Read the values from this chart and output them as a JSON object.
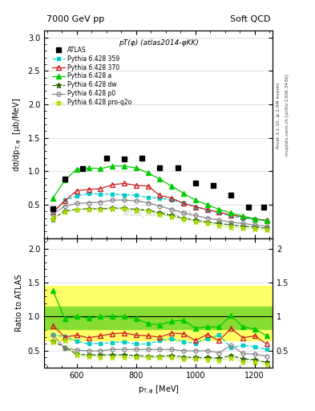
{
  "title_top": "7000 GeV pp",
  "title_right": "Soft QCD",
  "plot_title": "pT(φ) (atlas2014-φKK)",
  "watermark": "ATLAS_2014_I1282441",
  "right_label_top": "Rivet 3.1.10, ≥ 2.9M events",
  "right_label_bottom": "mcplots.cern.ch [arXiv:1306.3436]",
  "ylabel_main": "dσ/dpₜ,φ  [μb/MeV]",
  "ylabel_ratio": "Ratio to ATLAS",
  "xlabel": "pₜ,φ [MeV]",
  "xlim": [
    490,
    1260
  ],
  "ylim_main": [
    0.0,
    3.1
  ],
  "ylim_ratio": [
    0.25,
    2.15
  ],
  "yticks_main": [
    0.5,
    1.0,
    1.5,
    2.0,
    2.5,
    3.0
  ],
  "yticks_ratio": [
    0.5,
    1.0,
    1.5,
    2.0
  ],
  "xticks": [
    600,
    800,
    1000,
    1200
  ],
  "atlas_x": [
    520,
    560,
    620,
    700,
    760,
    820,
    880,
    940,
    1000,
    1060,
    1120,
    1180,
    1230
  ],
  "atlas_y": [
    0.44,
    0.89,
    1.04,
    1.2,
    1.19,
    1.2,
    1.05,
    1.05,
    0.82,
    0.79,
    0.64,
    0.47,
    0.47
  ],
  "series": [
    {
      "label": "Pythia 6.428 359",
      "color": "#00cccc",
      "linestyle": "--",
      "marker": "s",
      "markersize": 3.5,
      "filled": true,
      "x": [
        520,
        560,
        600,
        640,
        680,
        720,
        760,
        800,
        840,
        880,
        920,
        960,
        1000,
        1040,
        1080,
        1120,
        1160,
        1200,
        1240
      ],
      "y": [
        0.38,
        0.57,
        0.63,
        0.67,
        0.66,
        0.66,
        0.65,
        0.64,
        0.61,
        0.6,
        0.57,
        0.53,
        0.47,
        0.42,
        0.38,
        0.33,
        0.3,
        0.28,
        0.26
      ],
      "ratio": [
        0.73,
        0.71,
        0.64,
        0.6,
        0.61,
        0.62,
        0.63,
        0.6,
        0.6,
        0.65,
        0.68,
        0.63,
        0.61,
        0.68,
        0.73,
        0.55,
        0.58,
        0.56,
        0.52
      ]
    },
    {
      "label": "Pythia 6.428 370",
      "color": "#cc2222",
      "linestyle": "-",
      "marker": "^",
      "markersize": 4.5,
      "filled": false,
      "x": [
        520,
        560,
        600,
        640,
        680,
        720,
        760,
        800,
        840,
        880,
        920,
        960,
        1000,
        1040,
        1080,
        1120,
        1160,
        1200,
        1240
      ],
      "y": [
        0.39,
        0.56,
        0.71,
        0.73,
        0.74,
        0.8,
        0.82,
        0.79,
        0.78,
        0.64,
        0.6,
        0.52,
        0.47,
        0.43,
        0.39,
        0.35,
        0.32,
        0.29,
        0.27
      ],
      "ratio": [
        0.87,
        0.7,
        0.73,
        0.69,
        0.72,
        0.75,
        0.76,
        0.73,
        0.72,
        0.7,
        0.76,
        0.75,
        0.65,
        0.74,
        0.65,
        0.83,
        0.69,
        0.72,
        0.6
      ]
    },
    {
      "label": "Pythia 6.428 a",
      "color": "#00cc00",
      "linestyle": "-",
      "marker": "^",
      "markersize": 4.5,
      "filled": true,
      "x": [
        520,
        560,
        600,
        640,
        680,
        720,
        760,
        800,
        840,
        880,
        920,
        960,
        1000,
        1040,
        1080,
        1120,
        1160,
        1200,
        1240
      ],
      "y": [
        0.6,
        0.87,
        1.03,
        1.05,
        1.04,
        1.08,
        1.08,
        1.05,
        0.98,
        0.88,
        0.78,
        0.67,
        0.57,
        0.5,
        0.43,
        0.38,
        0.33,
        0.29,
        0.26
      ],
      "ratio": [
        1.38,
        0.97,
        1.0,
        0.98,
        1.0,
        1.01,
        1.0,
        0.97,
        0.9,
        0.88,
        0.93,
        0.95,
        0.83,
        0.85,
        0.85,
        1.02,
        0.85,
        0.82,
        0.72
      ]
    },
    {
      "label": "Pythia 6.428 dw",
      "color": "#226600",
      "linestyle": "--",
      "marker": "*",
      "markersize": 5,
      "filled": true,
      "x": [
        520,
        560,
        600,
        640,
        680,
        720,
        760,
        800,
        840,
        880,
        920,
        960,
        1000,
        1040,
        1080,
        1120,
        1160,
        1200,
        1240
      ],
      "y": [
        0.29,
        0.41,
        0.43,
        0.44,
        0.44,
        0.45,
        0.45,
        0.43,
        0.42,
        0.38,
        0.34,
        0.3,
        0.27,
        0.24,
        0.22,
        0.2,
        0.18,
        0.17,
        0.15
      ],
      "ratio": [
        0.64,
        0.55,
        0.45,
        0.44,
        0.44,
        0.44,
        0.44,
        0.43,
        0.42,
        0.42,
        0.43,
        0.41,
        0.4,
        0.4,
        0.39,
        0.43,
        0.38,
        0.37,
        0.33
      ]
    },
    {
      "label": "Pythia 6.428 p0",
      "color": "#888888",
      "linestyle": "-",
      "marker": "o",
      "markersize": 3.5,
      "filled": false,
      "x": [
        520,
        560,
        600,
        640,
        680,
        720,
        760,
        800,
        840,
        880,
        920,
        960,
        1000,
        1040,
        1080,
        1120,
        1160,
        1200,
        1240
      ],
      "y": [
        0.36,
        0.48,
        0.52,
        0.53,
        0.54,
        0.57,
        0.57,
        0.56,
        0.53,
        0.48,
        0.43,
        0.38,
        0.34,
        0.3,
        0.27,
        0.24,
        0.22,
        0.2,
        0.18
      ],
      "ratio": [
        0.73,
        0.54,
        0.51,
        0.5,
        0.5,
        0.52,
        0.52,
        0.52,
        0.52,
        0.52,
        0.52,
        0.5,
        0.5,
        0.5,
        0.47,
        0.58,
        0.46,
        0.45,
        0.42
      ]
    },
    {
      "label": "Pythia 6.428 pro-q2o",
      "color": "#aadd00",
      "linestyle": ":",
      "marker": "*",
      "markersize": 5,
      "filled": true,
      "x": [
        520,
        560,
        600,
        640,
        680,
        720,
        760,
        800,
        840,
        880,
        920,
        960,
        1000,
        1040,
        1080,
        1120,
        1160,
        1200,
        1240
      ],
      "y": [
        0.3,
        0.39,
        0.43,
        0.43,
        0.43,
        0.44,
        0.44,
        0.42,
        0.4,
        0.36,
        0.32,
        0.28,
        0.25,
        0.22,
        0.19,
        0.17,
        0.15,
        0.14,
        0.13
      ],
      "ratio": [
        0.63,
        0.65,
        0.44,
        0.42,
        0.41,
        0.41,
        0.4,
        0.4,
        0.4,
        0.4,
        0.4,
        0.38,
        0.38,
        0.37,
        0.36,
        0.39,
        0.34,
        0.34,
        0.3
      ]
    }
  ],
  "band_yellow": {
    "lower": 0.65,
    "upper": 1.45
  },
  "band_green": {
    "lower": 0.82,
    "upper": 1.15
  }
}
